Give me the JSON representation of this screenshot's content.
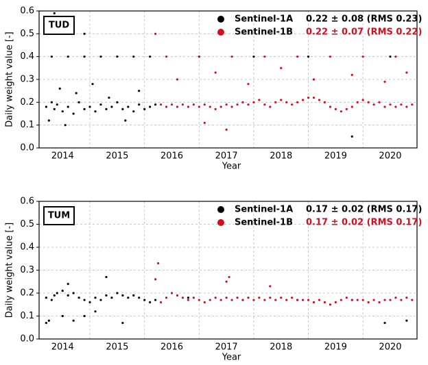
{
  "chart_data": [
    {
      "type": "scatter",
      "panel_label": "TUD",
      "ylabel": "Daily weight value [-]",
      "xlabel": "Year",
      "xlim": [
        2014.07,
        2020.99
      ],
      "ylim": [
        0,
        0.6
      ],
      "xticks": [
        {
          "value": 2014.5,
          "label": "2014"
        },
        {
          "value": 2015.5,
          "label": "2015"
        },
        {
          "value": 2016.5,
          "label": "2016"
        },
        {
          "value": 2017.5,
          "label": "2017"
        },
        {
          "value": 2018.5,
          "label": "2018"
        },
        {
          "value": 2019.5,
          "label": "2019"
        },
        {
          "value": 2020.5,
          "label": "2020"
        }
      ],
      "xgrid": [
        2015,
        2016,
        2017,
        2018,
        2019,
        2020
      ],
      "yticks": [
        {
          "value": 0,
          "label": "0.0"
        },
        0.1,
        0.2,
        0.3,
        0.4,
        0.5,
        0.6
      ],
      "grid": true,
      "series": [
        {
          "name": "Sentinel-1A",
          "stat": "0.22 ± 0.08 (RMS 0.23)",
          "color": "#000000",
          "x": [
            2014.2,
            2014.25,
            2014.3,
            2014.35,
            2014.4,
            2014.5,
            2014.6,
            2014.7,
            2014.8,
            2014.9,
            2015.0,
            2015.1,
            2015.2,
            2015.3,
            2015.4,
            2015.5,
            2015.6,
            2015.7,
            2015.8,
            2015.9,
            2016.0,
            2016.1,
            2016.2,
            2014.3,
            2014.6,
            2014.9,
            2015.2,
            2015.5,
            2015.8,
            2016.1,
            2014.45,
            2014.75,
            2015.05,
            2015.35,
            2015.9,
            2014.55,
            2015.65,
            2017.0,
            2018.0,
            2019.0,
            2019.8,
            2020.5,
            2014.35,
            2014.9
          ],
          "values": [
            0.18,
            0.12,
            0.2,
            0.17,
            0.19,
            0.16,
            0.18,
            0.15,
            0.2,
            0.17,
            0.18,
            0.16,
            0.19,
            0.17,
            0.18,
            0.2,
            0.17,
            0.18,
            0.16,
            0.19,
            0.17,
            0.18,
            0.19,
            0.4,
            0.4,
            0.4,
            0.4,
            0.4,
            0.4,
            0.4,
            0.26,
            0.24,
            0.28,
            0.22,
            0.25,
            0.1,
            0.12,
            0.4,
            0.4,
            0.4,
            0.05,
            0.4,
            0.59,
            0.5
          ]
        },
        {
          "name": "Sentinel-1B",
          "stat": "0.22 ± 0.07 (RMS 0.22)",
          "color": "#d0101e",
          "x": [
            2016.3,
            2016.4,
            2016.5,
            2016.6,
            2016.7,
            2016.8,
            2016.9,
            2017.0,
            2017.1,
            2017.2,
            2017.3,
            2017.4,
            2017.5,
            2017.6,
            2017.7,
            2017.8,
            2017.9,
            2018.0,
            2018.1,
            2018.2,
            2018.3,
            2018.4,
            2018.5,
            2018.6,
            2018.7,
            2018.8,
            2018.9,
            2019.0,
            2019.1,
            2019.2,
            2019.3,
            2019.4,
            2019.5,
            2019.6,
            2019.7,
            2019.8,
            2019.9,
            2020.0,
            2020.1,
            2020.2,
            2020.3,
            2020.4,
            2020.5,
            2020.6,
            2020.7,
            2020.8,
            2020.9,
            2016.4,
            2017.0,
            2017.6,
            2018.2,
            2018.8,
            2019.4,
            2020.0,
            2020.6,
            2016.6,
            2017.3,
            2017.9,
            2018.5,
            2019.1,
            2019.8,
            2020.4,
            2020.8,
            2017.5,
            2017.1,
            2016.2
          ],
          "values": [
            0.19,
            0.18,
            0.19,
            0.18,
            0.19,
            0.18,
            0.19,
            0.18,
            0.19,
            0.18,
            0.17,
            0.18,
            0.19,
            0.18,
            0.19,
            0.2,
            0.19,
            0.2,
            0.21,
            0.19,
            0.18,
            0.2,
            0.21,
            0.2,
            0.19,
            0.2,
            0.21,
            0.22,
            0.22,
            0.21,
            0.2,
            0.18,
            0.17,
            0.16,
            0.17,
            0.18,
            0.2,
            0.21,
            0.2,
            0.19,
            0.2,
            0.18,
            0.19,
            0.18,
            0.19,
            0.18,
            0.19,
            0.4,
            0.4,
            0.4,
            0.4,
            0.4,
            0.4,
            0.4,
            0.4,
            0.3,
            0.33,
            0.28,
            0.35,
            0.3,
            0.32,
            0.29,
            0.33,
            0.08,
            0.11,
            0.5
          ]
        }
      ]
    },
    {
      "type": "scatter",
      "panel_label": "TUM",
      "ylabel": "Daily weight value [-]",
      "xlabel": "Year",
      "xlim": [
        2014.07,
        2020.99
      ],
      "ylim": [
        0,
        0.6
      ],
      "xticks": [
        {
          "value": 2014.5,
          "label": "2014"
        },
        {
          "value": 2015.5,
          "label": "2015"
        },
        {
          "value": 2016.5,
          "label": "2016"
        },
        {
          "value": 2017.5,
          "label": "2017"
        },
        {
          "value": 2018.5,
          "label": "2018"
        },
        {
          "value": 2019.5,
          "label": "2019"
        },
        {
          "value": 2020.5,
          "label": "2020"
        }
      ],
      "xgrid": [
        2015,
        2016,
        2017,
        2018,
        2019,
        2020
      ],
      "yticks": [
        {
          "value": 0,
          "label": "0.0"
        },
        0.1,
        0.2,
        0.3,
        0.4,
        0.5,
        0.6
      ],
      "grid": true,
      "series": [
        {
          "name": "Sentinel-1A",
          "stat": "0.17 ± 0.02 (RMS 0.17)",
          "color": "#000000",
          "x": [
            2014.2,
            2014.25,
            2014.3,
            2014.35,
            2014.4,
            2014.5,
            2014.6,
            2014.7,
            2014.8,
            2014.9,
            2015.0,
            2015.1,
            2015.2,
            2015.3,
            2015.4,
            2015.5,
            2015.6,
            2015.7,
            2015.8,
            2015.9,
            2016.0,
            2016.1,
            2016.2,
            2014.2,
            2014.5,
            2014.7,
            2014.9,
            2015.1,
            2015.6,
            2014.6,
            2015.3,
            2016.8,
            2017.8,
            2018.8,
            2019.8,
            2020.8,
            2020.4
          ],
          "values": [
            0.18,
            0.08,
            0.17,
            0.19,
            0.2,
            0.21,
            0.19,
            0.2,
            0.18,
            0.17,
            0.16,
            0.18,
            0.17,
            0.19,
            0.18,
            0.2,
            0.19,
            0.18,
            0.19,
            0.18,
            0.17,
            0.16,
            0.17,
            0.07,
            0.1,
            0.08,
            0.1,
            0.12,
            0.07,
            0.24,
            0.27,
            0.18,
            0.17,
            0.17,
            0.17,
            0.08,
            0.07
          ]
        },
        {
          "name": "Sentinel-1B",
          "stat": "0.17 ± 0.02 (RMS 0.17)",
          "color": "#d0101e",
          "x": [
            2016.3,
            2016.4,
            2016.5,
            2016.6,
            2016.7,
            2016.8,
            2016.9,
            2017.0,
            2017.1,
            2017.2,
            2017.3,
            2017.4,
            2017.5,
            2017.6,
            2017.7,
            2017.8,
            2017.9,
            2018.0,
            2018.1,
            2018.2,
            2018.3,
            2018.4,
            2018.5,
            2018.6,
            2018.7,
            2018.8,
            2018.9,
            2019.0,
            2019.1,
            2019.2,
            2019.3,
            2019.4,
            2019.5,
            2019.6,
            2019.7,
            2019.8,
            2019.9,
            2020.0,
            2020.1,
            2020.2,
            2020.3,
            2020.4,
            2020.5,
            2020.6,
            2020.7,
            2020.8,
            2020.9,
            2016.2,
            2016.25,
            2017.5,
            2017.55,
            2018.3
          ],
          "values": [
            0.16,
            0.18,
            0.2,
            0.19,
            0.18,
            0.17,
            0.18,
            0.17,
            0.16,
            0.17,
            0.18,
            0.17,
            0.18,
            0.17,
            0.18,
            0.17,
            0.18,
            0.17,
            0.18,
            0.17,
            0.18,
            0.17,
            0.18,
            0.17,
            0.18,
            0.17,
            0.17,
            0.17,
            0.16,
            0.17,
            0.16,
            0.15,
            0.16,
            0.17,
            0.18,
            0.17,
            0.17,
            0.17,
            0.16,
            0.17,
            0.16,
            0.17,
            0.17,
            0.18,
            0.17,
            0.18,
            0.17,
            0.26,
            0.33,
            0.25,
            0.27,
            0.23
          ]
        }
      ]
    }
  ]
}
